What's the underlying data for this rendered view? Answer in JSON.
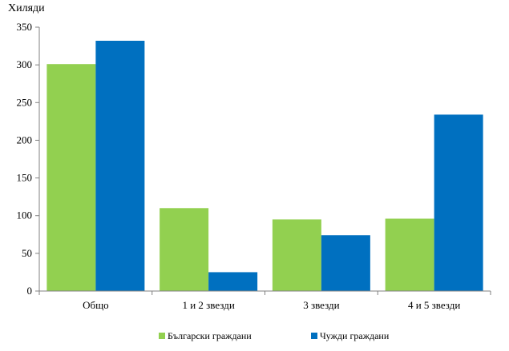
{
  "chart_data": {
    "type": "bar",
    "unit_label": "Хиляди",
    "categories": [
      "Общо",
      "1 и 2 звезди",
      "3 звезди",
      "4 и 5 звезди"
    ],
    "series": [
      {
        "name": "Български граждани",
        "color": "#92d050",
        "values": [
          301,
          110,
          95,
          96
        ]
      },
      {
        "name": "Чужди граждани",
        "color": "#0070c0",
        "values": [
          332,
          25,
          74,
          234
        ]
      }
    ],
    "ylim": [
      0,
      350
    ],
    "yticks": [
      0,
      50,
      100,
      150,
      200,
      250,
      300,
      350
    ],
    "grid": false,
    "legend_position": "bottom"
  }
}
